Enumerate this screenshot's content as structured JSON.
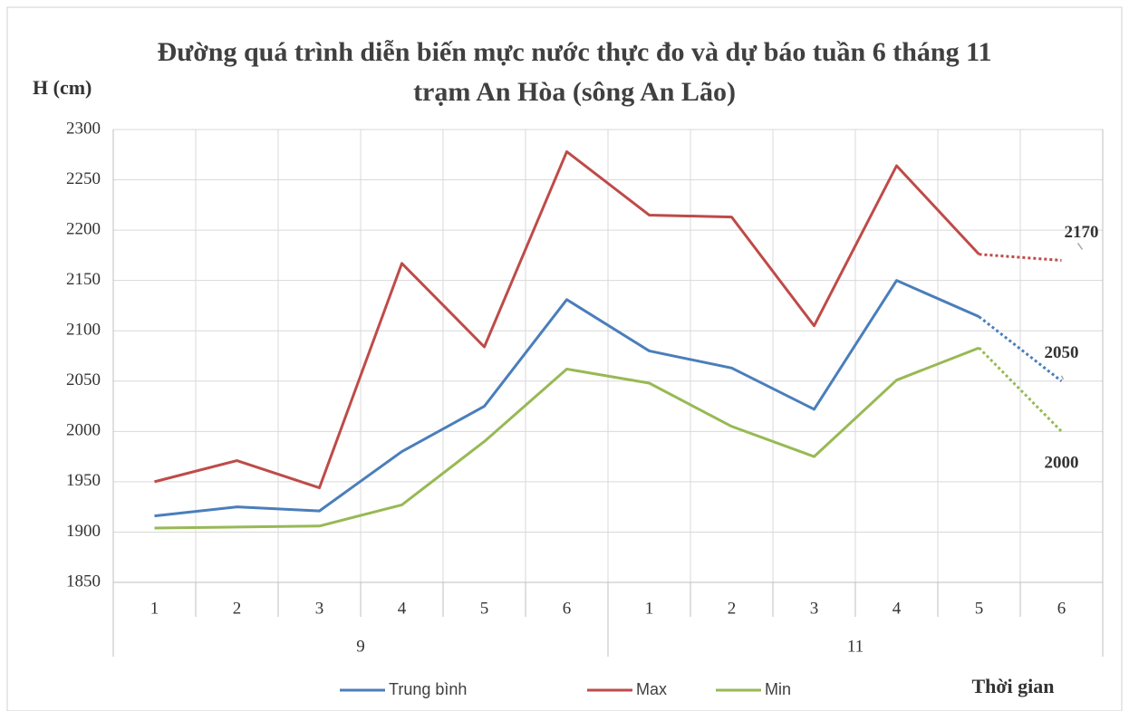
{
  "chart_data": {
    "type": "line",
    "title": "Đường quá trình diễn biến mực nước thực đo và dự báo tuần 6 tháng 11 trạm An Hòa (sông An Lão)",
    "y_label": "H (cm)",
    "x_label": "Thời gian",
    "categories": [
      "1",
      "2",
      "3",
      "4",
      "5",
      "6",
      "1",
      "2",
      "3",
      "4",
      "5",
      "6"
    ],
    "groups": [
      "9",
      "11"
    ],
    "series": [
      {
        "name": "Trung bình",
        "color": "#4a7ebb",
        "values": [
          1916,
          1925,
          1921,
          1980,
          2025,
          2131,
          2080,
          2063,
          2022,
          2150,
          2114,
          2050
        ]
      },
      {
        "name": "Max",
        "color": "#be4b48",
        "values": [
          1950,
          1971,
          1944,
          2167,
          2084,
          2278,
          2215,
          2213,
          2105,
          2264,
          2176,
          2170
        ]
      },
      {
        "name": "Min",
        "color": "#98b954",
        "values": [
          1904,
          1905,
          1906,
          1927,
          1990,
          2062,
          2048,
          2005,
          1975,
          2051,
          2083,
          2000
        ]
      }
    ],
    "forecast_from": 10,
    "data_labels": "last",
    "ylim": [
      1850,
      2300
    ],
    "yticks": [
      1850,
      1900,
      1950,
      2000,
      2050,
      2100,
      2150,
      2200,
      2250,
      2300
    ],
    "grid": true,
    "legend": "bottom"
  }
}
